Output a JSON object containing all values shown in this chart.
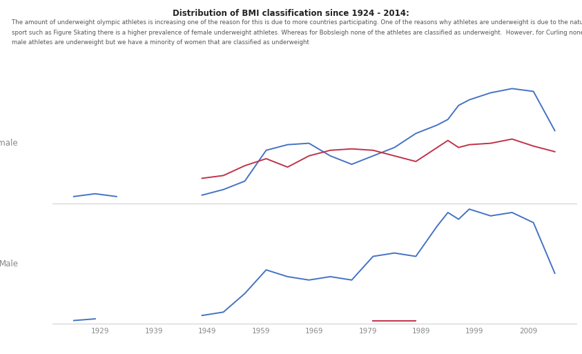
{
  "title": "Distribution of BMI classification since 1924 - 2014:",
  "subtitle_lines": [
    "The amount of underweight olympic athletes is increasing one of the reason for this is due to more countries participating. One of the reasons why athletes are underweight is due to the nature of the",
    "sport such as Figure Skating there is a higher prevalence of female underweight athletes. Whereas for Bobsleigh none of the athletes are classified as underweight.  However, for Curling none of the",
    "male athletes are underweight but we have a minority of women that are classified as underweight"
  ],
  "blue_color": "#4472C4",
  "red_color": "#C0314A",
  "background_color": "#FFFFFF",
  "panel_labels": [
    "Female",
    "Male"
  ],
  "x_ticks": [
    1929,
    1939,
    1949,
    1959,
    1969,
    1979,
    1989,
    1999,
    2009
  ],
  "female_blue": {
    "segments": [
      {
        "x": [
          1924,
          1928,
          1932
        ],
        "y": [
          5,
          7,
          5
        ]
      },
      {
        "x": [
          1948,
          1952,
          1956,
          1960,
          1964,
          1968,
          1972,
          1976,
          1980,
          1984,
          1988,
          1992,
          1994,
          1996,
          1998,
          2002,
          2006,
          2010,
          2014
        ],
        "y": [
          6,
          10,
          16,
          38,
          42,
          43,
          34,
          28,
          34,
          40,
          50,
          56,
          60,
          70,
          74,
          79,
          82,
          80,
          52
        ]
      }
    ]
  },
  "female_red": {
    "segments": [
      {
        "x": [
          1948,
          1952,
          1956,
          1960,
          1964,
          1968,
          1972,
          1976,
          1980,
          1984,
          1988,
          1992,
          1994,
          1996,
          1998,
          2002,
          2006,
          2010,
          2014
        ],
        "y": [
          18,
          20,
          27,
          32,
          26,
          34,
          38,
          39,
          38,
          34,
          30,
          40,
          45,
          40,
          42,
          43,
          46,
          41,
          37
        ]
      }
    ]
  },
  "male_blue": {
    "segments": [
      {
        "x": [
          1924,
          1928
        ],
        "y": [
          2,
          3
        ]
      },
      {
        "x": [
          1948,
          1952,
          1956,
          1960,
          1964,
          1968,
          1972,
          1976,
          1980,
          1984,
          1988,
          1992,
          1994,
          1996,
          1998,
          2002,
          2006,
          2010,
          2014
        ],
        "y": [
          5,
          7,
          18,
          32,
          28,
          26,
          28,
          26,
          40,
          42,
          40,
          58,
          66,
          62,
          68,
          64,
          66,
          60,
          30
        ]
      }
    ]
  },
  "male_red": {
    "segments": [
      {
        "x": [
          1980,
          1984,
          1988
        ],
        "y": [
          2,
          2,
          2
        ]
      }
    ]
  }
}
